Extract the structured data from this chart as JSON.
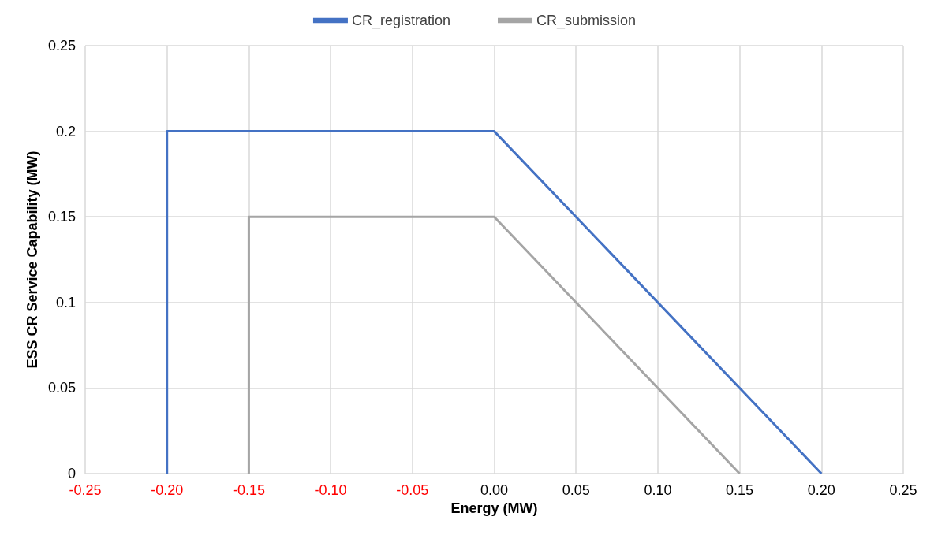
{
  "chart_data": {
    "type": "line",
    "xlabel": "Energy (MW)",
    "ylabel": "ESS CR Service Capability (MW)",
    "series": [
      {
        "name": "CR_registration",
        "color": "#4472c4",
        "x": [
          -0.2,
          -0.2,
          0,
          0.2
        ],
        "values": [
          0,
          0.2,
          0.2,
          0
        ]
      },
      {
        "name": "CR_submission",
        "color": "#a5a5a5",
        "x": [
          -0.15,
          -0.15,
          0,
          0.15
        ],
        "values": [
          0,
          0.15,
          0.15,
          0
        ]
      }
    ],
    "xlim": [
      -0.25,
      0.25
    ],
    "xticks": [
      {
        "value": -0.25,
        "label": "-0.25"
      },
      {
        "value": -0.2,
        "label": "-0.20"
      },
      {
        "value": -0.15,
        "label": "-0.15"
      },
      {
        "value": -0.1,
        "label": "-0.10"
      },
      {
        "value": -0.05,
        "label": "-0.05"
      },
      {
        "value": 0,
        "label": "0.00"
      },
      {
        "value": 0.05,
        "label": "0.05"
      },
      {
        "value": 0.1,
        "label": "0.10"
      },
      {
        "value": 0.15,
        "label": "0.15"
      },
      {
        "value": 0.2,
        "label": "0.20"
      },
      {
        "value": 0.25,
        "label": "0.25"
      }
    ],
    "ylim": [
      0,
      0.25
    ],
    "yticks": [
      0,
      0.05,
      0.1,
      0.15,
      0.2,
      0.25
    ],
    "grid": true,
    "legend": "top",
    "marker": "none",
    "line_style": "solid"
  }
}
